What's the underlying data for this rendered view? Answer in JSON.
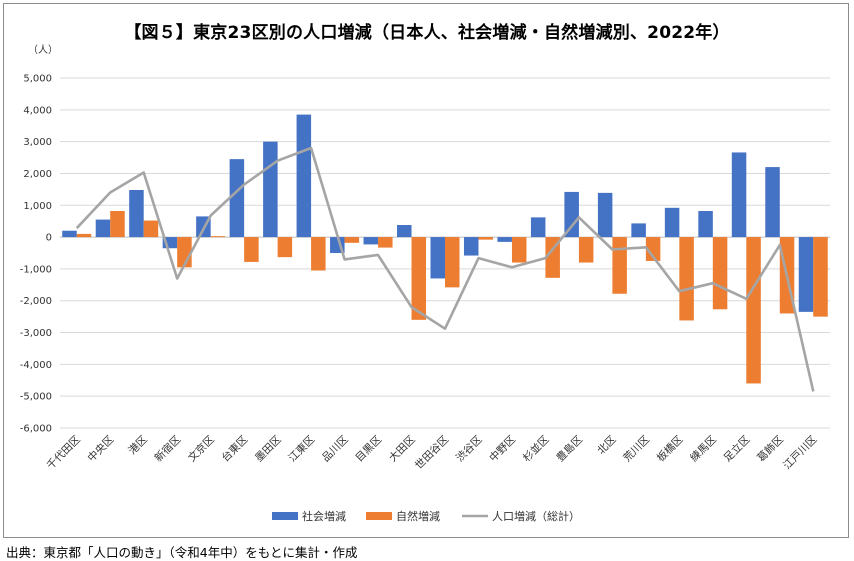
{
  "chart_data": {
    "type": "bar",
    "title": "【図５】東京23区別の人口増減（日本人、社会増減・自然増減別、2022年）",
    "ylabel": "（人）",
    "ylim": [
      -6000,
      5000
    ],
    "yticks": [
      5000,
      4000,
      3000,
      2000,
      1000,
      0,
      -1000,
      -2000,
      -3000,
      -4000,
      -5000,
      -6000
    ],
    "ytick_labels": [
      "5,000",
      "4,000",
      "3,000",
      "2,000",
      "1,000",
      "0",
      "-1,000",
      "-2,000",
      "-3,000",
      "-4,000",
      "-5,000",
      "-6,000"
    ],
    "categories": [
      "千代田区",
      "中央区",
      "港区",
      "新宿区",
      "文京区",
      "台東区",
      "墨田区",
      "江東区",
      "品川区",
      "目黒区",
      "大田区",
      "世田谷区",
      "渋谷区",
      "中野区",
      "杉並区",
      "豊島区",
      "北区",
      "荒川区",
      "板橋区",
      "練馬区",
      "足立区",
      "葛飾区",
      "江戸川区"
    ],
    "series": [
      {
        "name": "社会増減",
        "kind": "bar",
        "color": "#4472c4",
        "values": [
          200,
          550,
          1480,
          -350,
          650,
          2450,
          3000,
          3850,
          -500,
          -230,
          380,
          -1300,
          -580,
          -150,
          620,
          1420,
          1390,
          430,
          920,
          820,
          2660,
          2200,
          -2350
        ]
      },
      {
        "name": "自然増減",
        "kind": "bar",
        "color": "#ed7d31",
        "values": [
          100,
          820,
          520,
          -950,
          30,
          -780,
          -630,
          -1050,
          -180,
          -330,
          -2600,
          -1580,
          -80,
          -800,
          -1280,
          -800,
          -1780,
          -750,
          -2620,
          -2270,
          -4600,
          -2400,
          -2500
        ]
      },
      {
        "name": "人口増減（総計）",
        "kind": "line",
        "color": "#a5a5a5",
        "values": [
          280,
          1400,
          2030,
          -1300,
          680,
          1650,
          2400,
          2800,
          -700,
          -560,
          -2200,
          -2880,
          -660,
          -950,
          -660,
          620,
          -390,
          -320,
          -1700,
          -1450,
          -1940,
          -250,
          -4850
        ]
      }
    ],
    "legend_position": "bottom",
    "grid": true
  },
  "source": "出典：東京都「人口の動き」（令和4年中）をもとに集計・作成"
}
